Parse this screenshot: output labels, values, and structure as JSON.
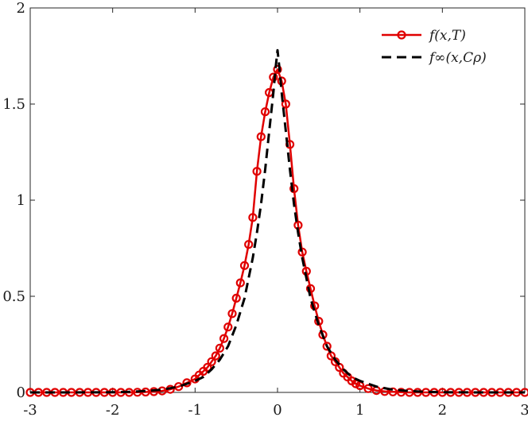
{
  "chart_data": {
    "type": "line",
    "title": "",
    "xlabel": "",
    "ylabel": "",
    "xlim": [
      -3,
      3
    ],
    "ylim": [
      0,
      2
    ],
    "xticks": [
      -3,
      -2,
      -1,
      0,
      1,
      2,
      3
    ],
    "xtick_labels": [
      "-3",
      "-2",
      "-1",
      "0",
      "1",
      "2",
      "3"
    ],
    "yticks": [
      0,
      0.5,
      1,
      1.5,
      2
    ],
    "ytick_labels": [
      "0",
      "0.5",
      "1",
      "1.5",
      "2"
    ],
    "grid": false,
    "legend_position": "top-right",
    "series": [
      {
        "name": "f(x,T)",
        "color": "#e00000",
        "line": "solid",
        "marker": "circle",
        "x": [
          -3.0,
          -2.9,
          -2.8,
          -2.7,
          -2.6,
          -2.5,
          -2.4,
          -2.3,
          -2.2,
          -2.1,
          -2.0,
          -1.9,
          -1.8,
          -1.7,
          -1.6,
          -1.5,
          -1.4,
          -1.3,
          -1.2,
          -1.1,
          -1.0,
          -0.95,
          -0.9,
          -0.85,
          -0.8,
          -0.75,
          -0.7,
          -0.65,
          -0.6,
          -0.55,
          -0.5,
          -0.45,
          -0.4,
          -0.35,
          -0.3,
          -0.25,
          -0.2,
          -0.15,
          -0.1,
          -0.05,
          0.0,
          0.05,
          0.1,
          0.15,
          0.2,
          0.25,
          0.3,
          0.35,
          0.4,
          0.45,
          0.5,
          0.55,
          0.6,
          0.65,
          0.7,
          0.75,
          0.8,
          0.85,
          0.9,
          0.95,
          1.0,
          1.1,
          1.2,
          1.3,
          1.4,
          1.5,
          1.6,
          1.7,
          1.8,
          1.9,
          2.0,
          2.1,
          2.2,
          2.3,
          2.4,
          2.5,
          2.6,
          2.7,
          2.8,
          2.9,
          3.0
        ],
        "y": [
          0.0,
          0.0,
          0.0,
          0.0,
          0.0,
          0.0,
          0.0,
          0.0,
          0.0,
          0.0,
          0.0,
          0.0,
          0.0,
          0.001,
          0.002,
          0.004,
          0.008,
          0.016,
          0.03,
          0.05,
          0.07,
          0.09,
          0.11,
          0.13,
          0.16,
          0.19,
          0.23,
          0.28,
          0.34,
          0.41,
          0.49,
          0.57,
          0.66,
          0.77,
          0.91,
          1.15,
          1.33,
          1.46,
          1.56,
          1.64,
          1.68,
          1.62,
          1.5,
          1.29,
          1.06,
          0.87,
          0.73,
          0.63,
          0.54,
          0.45,
          0.37,
          0.3,
          0.24,
          0.19,
          0.16,
          0.13,
          0.1,
          0.08,
          0.06,
          0.045,
          0.035,
          0.02,
          0.01,
          0.005,
          0.003,
          0.001,
          0.0,
          0.0,
          0.0,
          0.0,
          0.0,
          0.0,
          0.0,
          0.0,
          0.0,
          0.0,
          0.0,
          0.0,
          0.0,
          0.0,
          0.0
        ]
      },
      {
        "name": "f∞(x,Cρ)",
        "color": "#000000",
        "line": "dashed",
        "marker": "none",
        "x": [
          -3.0,
          -2.5,
          -2.0,
          -1.8,
          -1.6,
          -1.4,
          -1.2,
          -1.0,
          -0.9,
          -0.8,
          -0.7,
          -0.6,
          -0.5,
          -0.4,
          -0.3,
          -0.25,
          -0.2,
          -0.15,
          -0.1,
          -0.05,
          -0.02,
          0.0,
          0.02,
          0.05,
          0.1,
          0.15,
          0.2,
          0.25,
          0.3,
          0.4,
          0.5,
          0.6,
          0.7,
          0.8,
          0.9,
          1.0,
          1.2,
          1.4,
          1.6,
          1.8,
          2.0,
          2.5,
          3.0
        ],
        "y": [
          0.0,
          0.0,
          0.001,
          0.003,
          0.007,
          0.014,
          0.03,
          0.06,
          0.08,
          0.12,
          0.17,
          0.24,
          0.35,
          0.49,
          0.7,
          0.83,
          0.98,
          1.16,
          1.36,
          1.56,
          1.7,
          1.78,
          1.7,
          1.56,
          1.36,
          1.16,
          0.98,
          0.83,
          0.7,
          0.49,
          0.35,
          0.24,
          0.17,
          0.12,
          0.08,
          0.06,
          0.03,
          0.014,
          0.007,
          0.003,
          0.001,
          0.0,
          0.0
        ]
      }
    ]
  }
}
